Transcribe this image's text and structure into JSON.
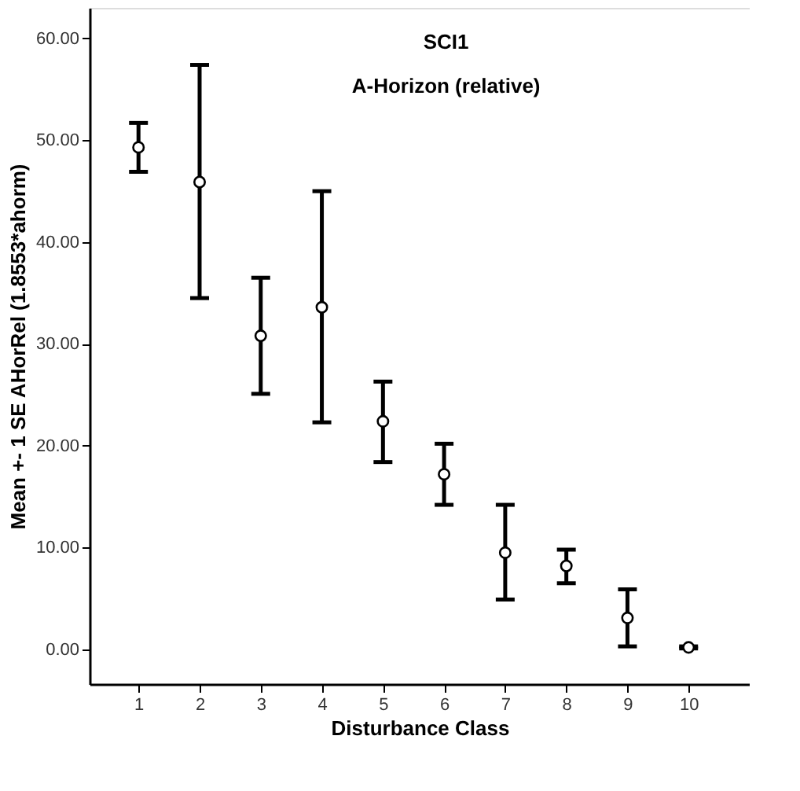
{
  "chart_data": {
    "type": "scatter",
    "title": "SCI1",
    "subtitle": "A-Horizon (relative)",
    "xlabel": "Disturbance Class",
    "ylabel": "Mean +- 1 SE AHorRel (1.8553*ahorm)",
    "categories": [
      "1",
      "2",
      "3",
      "4",
      "5",
      "6",
      "7",
      "8",
      "9",
      "10"
    ],
    "series": [
      {
        "color": "#000000",
        "values": [
          49.3,
          45.9,
          30.8,
          33.6,
          22.4,
          17.2,
          9.5,
          8.2,
          3.1,
          0.2
        ],
        "errors": [
          [
            46.9,
            51.7
          ],
          [
            34.5,
            57.4
          ],
          [
            25.1,
            36.5
          ],
          [
            22.3,
            45.0
          ],
          [
            18.4,
            26.3
          ],
          [
            14.2,
            20.2
          ],
          [
            4.9,
            14.2
          ],
          [
            6.5,
            9.8
          ],
          [
            0.3,
            5.9
          ],
          [
            0.1,
            0.3
          ]
        ]
      }
    ],
    "ylim": [
      -3.4,
      63
    ],
    "yticks": [
      {
        "value": 0,
        "label": "0.00"
      },
      {
        "value": 10,
        "label": "10.00"
      },
      {
        "value": 20,
        "label": "20.00"
      },
      {
        "value": 30,
        "label": "30.00"
      },
      {
        "value": 40,
        "label": "40.00"
      },
      {
        "value": 50,
        "label": "50.00"
      },
      {
        "value": 60,
        "label": "60.00"
      }
    ],
    "marker": "circle",
    "grid": false
  }
}
